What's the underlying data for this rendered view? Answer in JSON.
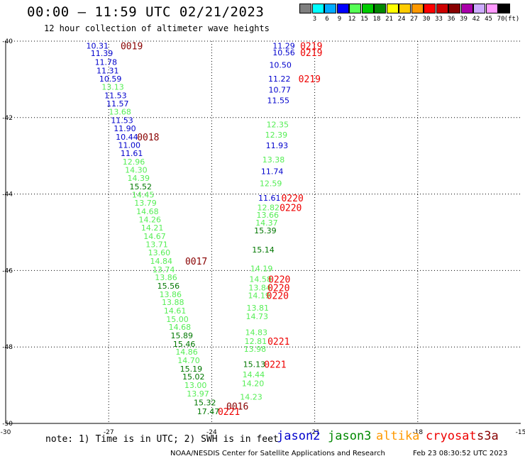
{
  "header": {
    "title": "00:00 – 11:59 UTC 02/21/2023",
    "subtitle": "12 hour collection of altimeter wave heights"
  },
  "colorbar": {
    "unit": "(ft)",
    "bins": [
      {
        "label": "3",
        "color": "#7f7f7f"
      },
      {
        "label": "6",
        "color": "#00ffff"
      },
      {
        "label": "9",
        "color": "#00aaff"
      },
      {
        "label": "12",
        "color": "#0000ff"
      },
      {
        "label": "15",
        "color": "#55ff55"
      },
      {
        "label": "18",
        "color": "#00cc00"
      },
      {
        "label": "21",
        "color": "#008800"
      },
      {
        "label": "24",
        "color": "#ffff00"
      },
      {
        "label": "27",
        "color": "#ffcc00"
      },
      {
        "label": "30",
        "color": "#ff9900"
      },
      {
        "label": "33",
        "color": "#ff0000"
      },
      {
        "label": "36",
        "color": "#cc0000"
      },
      {
        "label": "39",
        "color": "#880000"
      },
      {
        "label": "42",
        "color": "#aa00aa"
      },
      {
        "label": "45",
        "color": "#ccaaff"
      },
      {
        "label": "70",
        "color": "#ff99ff"
      },
      {
        "label": "",
        "color": "#000000"
      }
    ]
  },
  "chart_data": {
    "type": "scatter",
    "xlim": [
      -30,
      -15
    ],
    "ylim": [
      -50,
      -40
    ],
    "x_ticks": [
      -30,
      -27,
      -24,
      -21,
      -18,
      -15
    ],
    "y_ticks": [
      -40,
      -42,
      -44,
      -46,
      -48,
      -50
    ],
    "grid": true,
    "colors": {
      "blue": "#0000cc",
      "lightgreen": "#55ee55",
      "green": "#007700",
      "darkred": "#880000",
      "red": "#ee0000"
    },
    "points": [
      {
        "x": -27.33,
        "y": -40.12,
        "label": "10.31",
        "color": "blue"
      },
      {
        "x": -27.2,
        "y": -40.32,
        "label": "11.39",
        "color": "blue"
      },
      {
        "x": -27.08,
        "y": -40.55,
        "label": "11.78",
        "color": "blue"
      },
      {
        "x": -27.03,
        "y": -40.77,
        "label": "11.31",
        "color": "blue"
      },
      {
        "x": -26.95,
        "y": -40.98,
        "label": "10.59",
        "color": "blue"
      },
      {
        "x": -26.88,
        "y": -41.2,
        "label": "13.13",
        "color": "lightgreen"
      },
      {
        "x": -26.8,
        "y": -41.42,
        "label": "11.53",
        "color": "blue"
      },
      {
        "x": -26.74,
        "y": -41.63,
        "label": "11.57",
        "color": "blue"
      },
      {
        "x": -26.67,
        "y": -41.85,
        "label": "13.68",
        "color": "lightgreen"
      },
      {
        "x": -26.61,
        "y": -42.07,
        "label": "11.53",
        "color": "blue"
      },
      {
        "x": -26.53,
        "y": -42.28,
        "label": "11.90",
        "color": "blue"
      },
      {
        "x": -26.47,
        "y": -42.5,
        "label": "10.44",
        "color": "blue"
      },
      {
        "x": -26.4,
        "y": -42.72,
        "label": "11.00",
        "color": "blue"
      },
      {
        "x": -26.33,
        "y": -42.93,
        "label": "11.61",
        "color": "blue"
      },
      {
        "x": -26.27,
        "y": -43.15,
        "label": "12.96",
        "color": "lightgreen"
      },
      {
        "x": -26.2,
        "y": -43.37,
        "label": "14.30",
        "color": "lightgreen"
      },
      {
        "x": -26.13,
        "y": -43.58,
        "label": "14.39",
        "color": "lightgreen"
      },
      {
        "x": -26.07,
        "y": -43.8,
        "label": "15.52",
        "color": "green"
      },
      {
        "x": -26.0,
        "y": -44.02,
        "label": "14.45",
        "color": "lightgreen"
      },
      {
        "x": -25.93,
        "y": -44.23,
        "label": "13.79",
        "color": "lightgreen"
      },
      {
        "x": -25.87,
        "y": -44.45,
        "label": "14.68",
        "color": "lightgreen"
      },
      {
        "x": -25.8,
        "y": -44.67,
        "label": "14.26",
        "color": "lightgreen"
      },
      {
        "x": -25.73,
        "y": -44.88,
        "label": "14.21",
        "color": "lightgreen"
      },
      {
        "x": -25.66,
        "y": -45.1,
        "label": "14.67",
        "color": "lightgreen"
      },
      {
        "x": -25.6,
        "y": -45.32,
        "label": "13.71",
        "color": "lightgreen"
      },
      {
        "x": -25.53,
        "y": -45.53,
        "label": "13.60",
        "color": "lightgreen"
      },
      {
        "x": -25.47,
        "y": -45.75,
        "label": "14.84",
        "color": "lightgreen"
      },
      {
        "x": -25.4,
        "y": -45.97,
        "label": "13.74",
        "color": "lightgreen"
      },
      {
        "x": -25.33,
        "y": -46.18,
        "label": "13.86",
        "color": "lightgreen"
      },
      {
        "x": -25.26,
        "y": -46.4,
        "label": "15.56",
        "color": "green"
      },
      {
        "x": -25.2,
        "y": -46.62,
        "label": "13.86",
        "color": "lightgreen"
      },
      {
        "x": -25.13,
        "y": -46.83,
        "label": "13.88",
        "color": "lightgreen"
      },
      {
        "x": -25.07,
        "y": -47.05,
        "label": "14.61",
        "color": "lightgreen"
      },
      {
        "x": -25.0,
        "y": -47.27,
        "label": "15.00",
        "color": "lightgreen"
      },
      {
        "x": -24.93,
        "y": -47.48,
        "label": "14.68",
        "color": "lightgreen"
      },
      {
        "x": -24.87,
        "y": -47.7,
        "label": "15.89",
        "color": "green"
      },
      {
        "x": -24.8,
        "y": -47.92,
        "label": "15.46",
        "color": "green"
      },
      {
        "x": -24.73,
        "y": -48.13,
        "label": "14.86",
        "color": "lightgreen"
      },
      {
        "x": -24.67,
        "y": -48.35,
        "label": "14.70",
        "color": "lightgreen"
      },
      {
        "x": -24.6,
        "y": -48.57,
        "label": "15.19",
        "color": "green"
      },
      {
        "x": -24.53,
        "y": -48.78,
        "label": "15.02",
        "color": "green"
      },
      {
        "x": -24.47,
        "y": -49.0,
        "label": "13.00",
        "color": "lightgreen"
      },
      {
        "x": -24.4,
        "y": -49.22,
        "label": "13.97",
        "color": "lightgreen"
      },
      {
        "x": -24.2,
        "y": -49.45,
        "label": "15.32",
        "color": "green"
      },
      {
        "x": -24.1,
        "y": -49.68,
        "label": "17.47",
        "color": "green"
      },
      {
        "x": -21.9,
        "y": -40.12,
        "label": "11.29",
        "color": "blue"
      },
      {
        "x": -21.9,
        "y": -40.3,
        "label": "10.56",
        "color": "blue"
      },
      {
        "x": -22.0,
        "y": -40.62,
        "label": "10.50",
        "color": "blue"
      },
      {
        "x": -22.03,
        "y": -40.98,
        "label": "11.22",
        "color": "blue"
      },
      {
        "x": -22.02,
        "y": -41.27,
        "label": "10.77",
        "color": "blue"
      },
      {
        "x": -22.06,
        "y": -41.55,
        "label": "11.55",
        "color": "blue"
      },
      {
        "x": -22.08,
        "y": -42.18,
        "label": "12.35",
        "color": "lightgreen"
      },
      {
        "x": -22.12,
        "y": -42.45,
        "label": "12.39",
        "color": "lightgreen"
      },
      {
        "x": -22.1,
        "y": -42.73,
        "label": "11.93",
        "color": "blue"
      },
      {
        "x": -22.2,
        "y": -43.1,
        "label": "13.38",
        "color": "lightgreen"
      },
      {
        "x": -22.24,
        "y": -43.4,
        "label": "11.74",
        "color": "blue"
      },
      {
        "x": -22.28,
        "y": -43.72,
        "label": "12.59",
        "color": "lightgreen"
      },
      {
        "x": -22.32,
        "y": -44.1,
        "label": "11.61",
        "color": "blue"
      },
      {
        "x": -22.35,
        "y": -44.35,
        "label": "12.82",
        "color": "lightgreen"
      },
      {
        "x": -22.37,
        "y": -44.55,
        "label": "13.66",
        "color": "lightgreen"
      },
      {
        "x": -22.4,
        "y": -44.75,
        "label": "14.37",
        "color": "lightgreen"
      },
      {
        "x": -22.44,
        "y": -44.95,
        "label": "15.39",
        "color": "green"
      },
      {
        "x": -22.5,
        "y": -45.45,
        "label": "15.14",
        "color": "green"
      },
      {
        "x": -22.55,
        "y": -45.95,
        "label": "14.19",
        "color": "lightgreen"
      },
      {
        "x": -22.58,
        "y": -46.22,
        "label": "14.58",
        "color": "lightgreen"
      },
      {
        "x": -22.6,
        "y": -46.45,
        "label": "13.84",
        "color": "lightgreen"
      },
      {
        "x": -22.62,
        "y": -46.65,
        "label": "14.19",
        "color": "lightgreen"
      },
      {
        "x": -22.66,
        "y": -46.98,
        "label": "13.81",
        "color": "lightgreen"
      },
      {
        "x": -22.68,
        "y": -47.2,
        "label": "14.73",
        "color": "lightgreen"
      },
      {
        "x": -22.7,
        "y": -47.62,
        "label": "14.83",
        "color": "lightgreen"
      },
      {
        "x": -22.72,
        "y": -47.85,
        "label": "12.81",
        "color": "lightgreen"
      },
      {
        "x": -22.74,
        "y": -48.05,
        "label": "13.98",
        "color": "lightgreen"
      },
      {
        "x": -22.76,
        "y": -48.45,
        "label": "15.13",
        "color": "green"
      },
      {
        "x": -22.78,
        "y": -48.72,
        "label": "14.44",
        "color": "lightgreen"
      },
      {
        "x": -22.8,
        "y": -48.95,
        "label": "14.20",
        "color": "lightgreen"
      },
      {
        "x": -22.85,
        "y": -49.3,
        "label": "14.23",
        "color": "lightgreen"
      }
    ],
    "time_labels": [
      {
        "x": -26.33,
        "y": -40.12,
        "label": "0019",
        "color": "darkred"
      },
      {
        "x": -25.85,
        "y": -42.5,
        "label": "0018",
        "color": "darkred"
      },
      {
        "x": -24.45,
        "y": -45.75,
        "label": "0017",
        "color": "darkred"
      },
      {
        "x": -23.25,
        "y": -49.55,
        "label": "0016",
        "color": "darkred"
      },
      {
        "x": -21.1,
        "y": -40.12,
        "label": "0219",
        "color": "red"
      },
      {
        "x": -21.1,
        "y": -40.3,
        "label": "0219",
        "color": "red"
      },
      {
        "x": -21.15,
        "y": -40.98,
        "label": "0219",
        "color": "red"
      },
      {
        "x": -21.65,
        "y": -44.1,
        "label": "0220",
        "color": "red"
      },
      {
        "x": -21.7,
        "y": -44.35,
        "label": "0220",
        "color": "red"
      },
      {
        "x": -22.03,
        "y": -46.22,
        "label": "0220",
        "color": "red"
      },
      {
        "x": -22.05,
        "y": -46.45,
        "label": "0220",
        "color": "red"
      },
      {
        "x": -22.08,
        "y": -46.65,
        "label": "0220",
        "color": "red"
      },
      {
        "x": -22.05,
        "y": -47.85,
        "label": "0221",
        "color": "red"
      },
      {
        "x": -22.15,
        "y": -48.45,
        "label": "0221",
        "color": "red"
      },
      {
        "x": -23.5,
        "y": -49.68,
        "label": "0221",
        "color": "red"
      }
    ]
  },
  "footer": {
    "note": "note: 1) Time is in UTC; 2) SWH is in feet",
    "satellites": [
      {
        "label": "jason2",
        "color": "#0000cc"
      },
      {
        "label": "jason3",
        "color": "#008800"
      },
      {
        "label": "altika",
        "color": "#ff9900"
      },
      {
        "label": "cryosat",
        "color": "#ee0000"
      },
      {
        "label": "s3a",
        "color": "#880000"
      }
    ],
    "agency": "NOAA/NESDIS Center for Satellite Applications and Research",
    "generated": "Feb 23 08:30:52 UTC 2023"
  }
}
